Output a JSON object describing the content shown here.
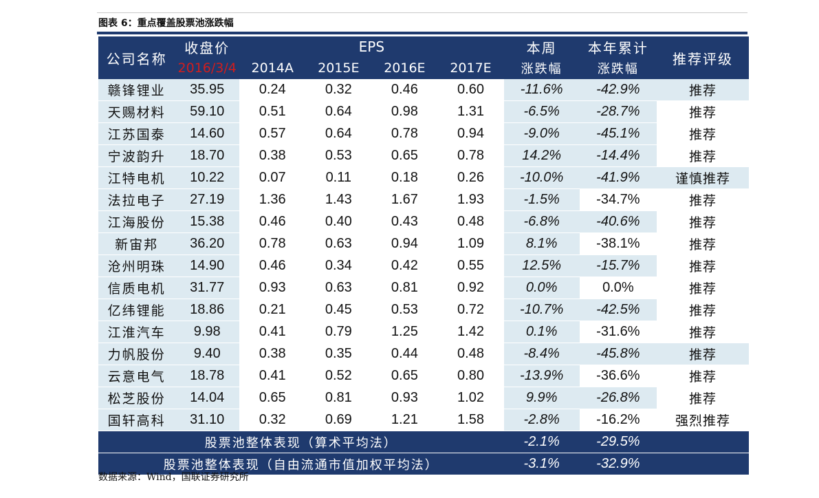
{
  "figure_title": "图表 6：重点覆盖股票池涨跌幅",
  "header": {
    "company": "公司名称",
    "price": "收盘价",
    "price_date": "2016/3/4",
    "eps": "EPS",
    "years": [
      "2014A",
      "2015E",
      "2016E",
      "2017E"
    ],
    "weekly_line1": "本周",
    "weekly_line2": "涨跌幅",
    "ytd_line1": "本年累计",
    "ytd_line2": "涨跌幅",
    "rating": "推荐评级"
  },
  "rows": [
    {
      "name": "赣锋锂业",
      "price": "35.95",
      "e14": "0.24",
      "e15": "0.32",
      "e16": "0.46",
      "e17": "0.60",
      "weekly": "-11.6%",
      "ytd": "-42.9%",
      "rating": "推荐"
    },
    {
      "name": "天赐材料",
      "price": "59.10",
      "e14": "0.51",
      "e15": "0.64",
      "e16": "0.98",
      "e17": "1.31",
      "weekly": "-6.5%",
      "ytd": "-28.7%",
      "rating": "推荐"
    },
    {
      "name": "江苏国泰",
      "price": "14.60",
      "e14": "0.57",
      "e15": "0.64",
      "e16": "0.78",
      "e17": "0.94",
      "weekly": "-9.0%",
      "ytd": "-45.1%",
      "rating": "推荐"
    },
    {
      "name": "宁波韵升",
      "price": "18.70",
      "e14": "0.38",
      "e15": "0.53",
      "e16": "0.65",
      "e17": "0.78",
      "weekly": "14.2%",
      "ytd": "-14.4%",
      "rating": "推荐"
    },
    {
      "name": "江特电机",
      "price": "10.22",
      "e14": "0.07",
      "e15": "0.11",
      "e16": "0.18",
      "e17": "0.26",
      "weekly": "-10.0%",
      "ytd": "-41.9%",
      "rating": "谨慎推荐"
    },
    {
      "name": "法拉电子",
      "price": "27.19",
      "e14": "1.36",
      "e15": "1.43",
      "e16": "1.67",
      "e17": "1.93",
      "weekly": "-1.5%",
      "ytd": "-34.7%",
      "rating": "推荐"
    },
    {
      "name": "江海股份",
      "price": "15.38",
      "e14": "0.46",
      "e15": "0.40",
      "e16": "0.43",
      "e17": "0.48",
      "weekly": "-6.8%",
      "ytd": "-40.6%",
      "rating": "推荐"
    },
    {
      "name": "新宙邦",
      "price": "36.20",
      "e14": "0.78",
      "e15": "0.63",
      "e16": "0.94",
      "e17": "1.09",
      "weekly": "8.1%",
      "ytd": "-38.1%",
      "rating": "推荐"
    },
    {
      "name": "沧州明珠",
      "price": "14.90",
      "e14": "0.46",
      "e15": "0.34",
      "e16": "0.42",
      "e17": "0.55",
      "weekly": "12.5%",
      "ytd": "-15.7%",
      "rating": "推荐"
    },
    {
      "name": "信质电机",
      "price": "31.77",
      "e14": "0.93",
      "e15": "0.63",
      "e16": "0.81",
      "e17": "0.92",
      "weekly": "0.0%",
      "ytd": "0.0%",
      "rating": "推荐"
    },
    {
      "name": "亿纬锂能",
      "price": "18.86",
      "e14": "0.21",
      "e15": "0.45",
      "e16": "0.53",
      "e17": "0.72",
      "weekly": "-10.7%",
      "ytd": "-42.5%",
      "rating": "推荐"
    },
    {
      "name": "江淮汽车",
      "price": "9.98",
      "e14": "0.41",
      "e15": "0.79",
      "e16": "1.25",
      "e17": "1.42",
      "weekly": "0.1%",
      "ytd": "-31.6%",
      "rating": "推荐"
    },
    {
      "name": "力帆股份",
      "price": "9.40",
      "e14": "0.38",
      "e15": "0.35",
      "e16": "0.44",
      "e17": "0.48",
      "weekly": "-8.4%",
      "ytd": "-45.8%",
      "rating": "推荐"
    },
    {
      "name": "云意电气",
      "price": "18.78",
      "e14": "0.41",
      "e15": "0.52",
      "e16": "0.65",
      "e17": "0.80",
      "weekly": "-13.9%",
      "ytd": "-36.6%",
      "rating": "推荐"
    },
    {
      "name": "松芝股份",
      "price": "14.04",
      "e14": "0.65",
      "e15": "0.81",
      "e16": "0.93",
      "e17": "1.02",
      "weekly": "9.9%",
      "ytd": "-26.8%",
      "rating": "推荐"
    },
    {
      "name": "国轩高科",
      "price": "31.10",
      "e14": "0.32",
      "e15": "0.69",
      "e16": "1.21",
      "e17": "1.58",
      "weekly": "-2.8%",
      "ytd": "-16.2%",
      "rating": "强烈推荐"
    }
  ],
  "summary": [
    {
      "label": "股票池整体表现（算术平均法）",
      "weekly": "-2.1%",
      "ytd": "-29.5%"
    },
    {
      "label": "股票池整体表现（自由流通市值加权平均法）",
      "weekly": "-3.1%",
      "ytd": "-32.9%"
    }
  ],
  "source": "数据来源：Wind，国联证券研究所",
  "colors": {
    "header_bg": "#1f3a6e",
    "shade": "#ddeaf1",
    "date_red": "#d11d1d"
  },
  "shading": {
    "shaded_columns_all_rows": [
      "name",
      "price",
      "weekly",
      "ytd"
    ],
    "white_ytd_rows_normal_font": [
      "法拉电子",
      "新宙邦",
      "信质电机",
      "江淮汽车",
      "云意电气",
      "国轩高科"
    ],
    "white_rating_rows": [
      "天赐材料",
      "江苏国泰",
      "宁波韵升",
      "法拉电子",
      "江海股份",
      "新宙邦",
      "沧州明珠",
      "信质电机",
      "亿纬锂能",
      "江淮汽车",
      "云意电气",
      "松芝股份",
      "国轩高科"
    ]
  }
}
